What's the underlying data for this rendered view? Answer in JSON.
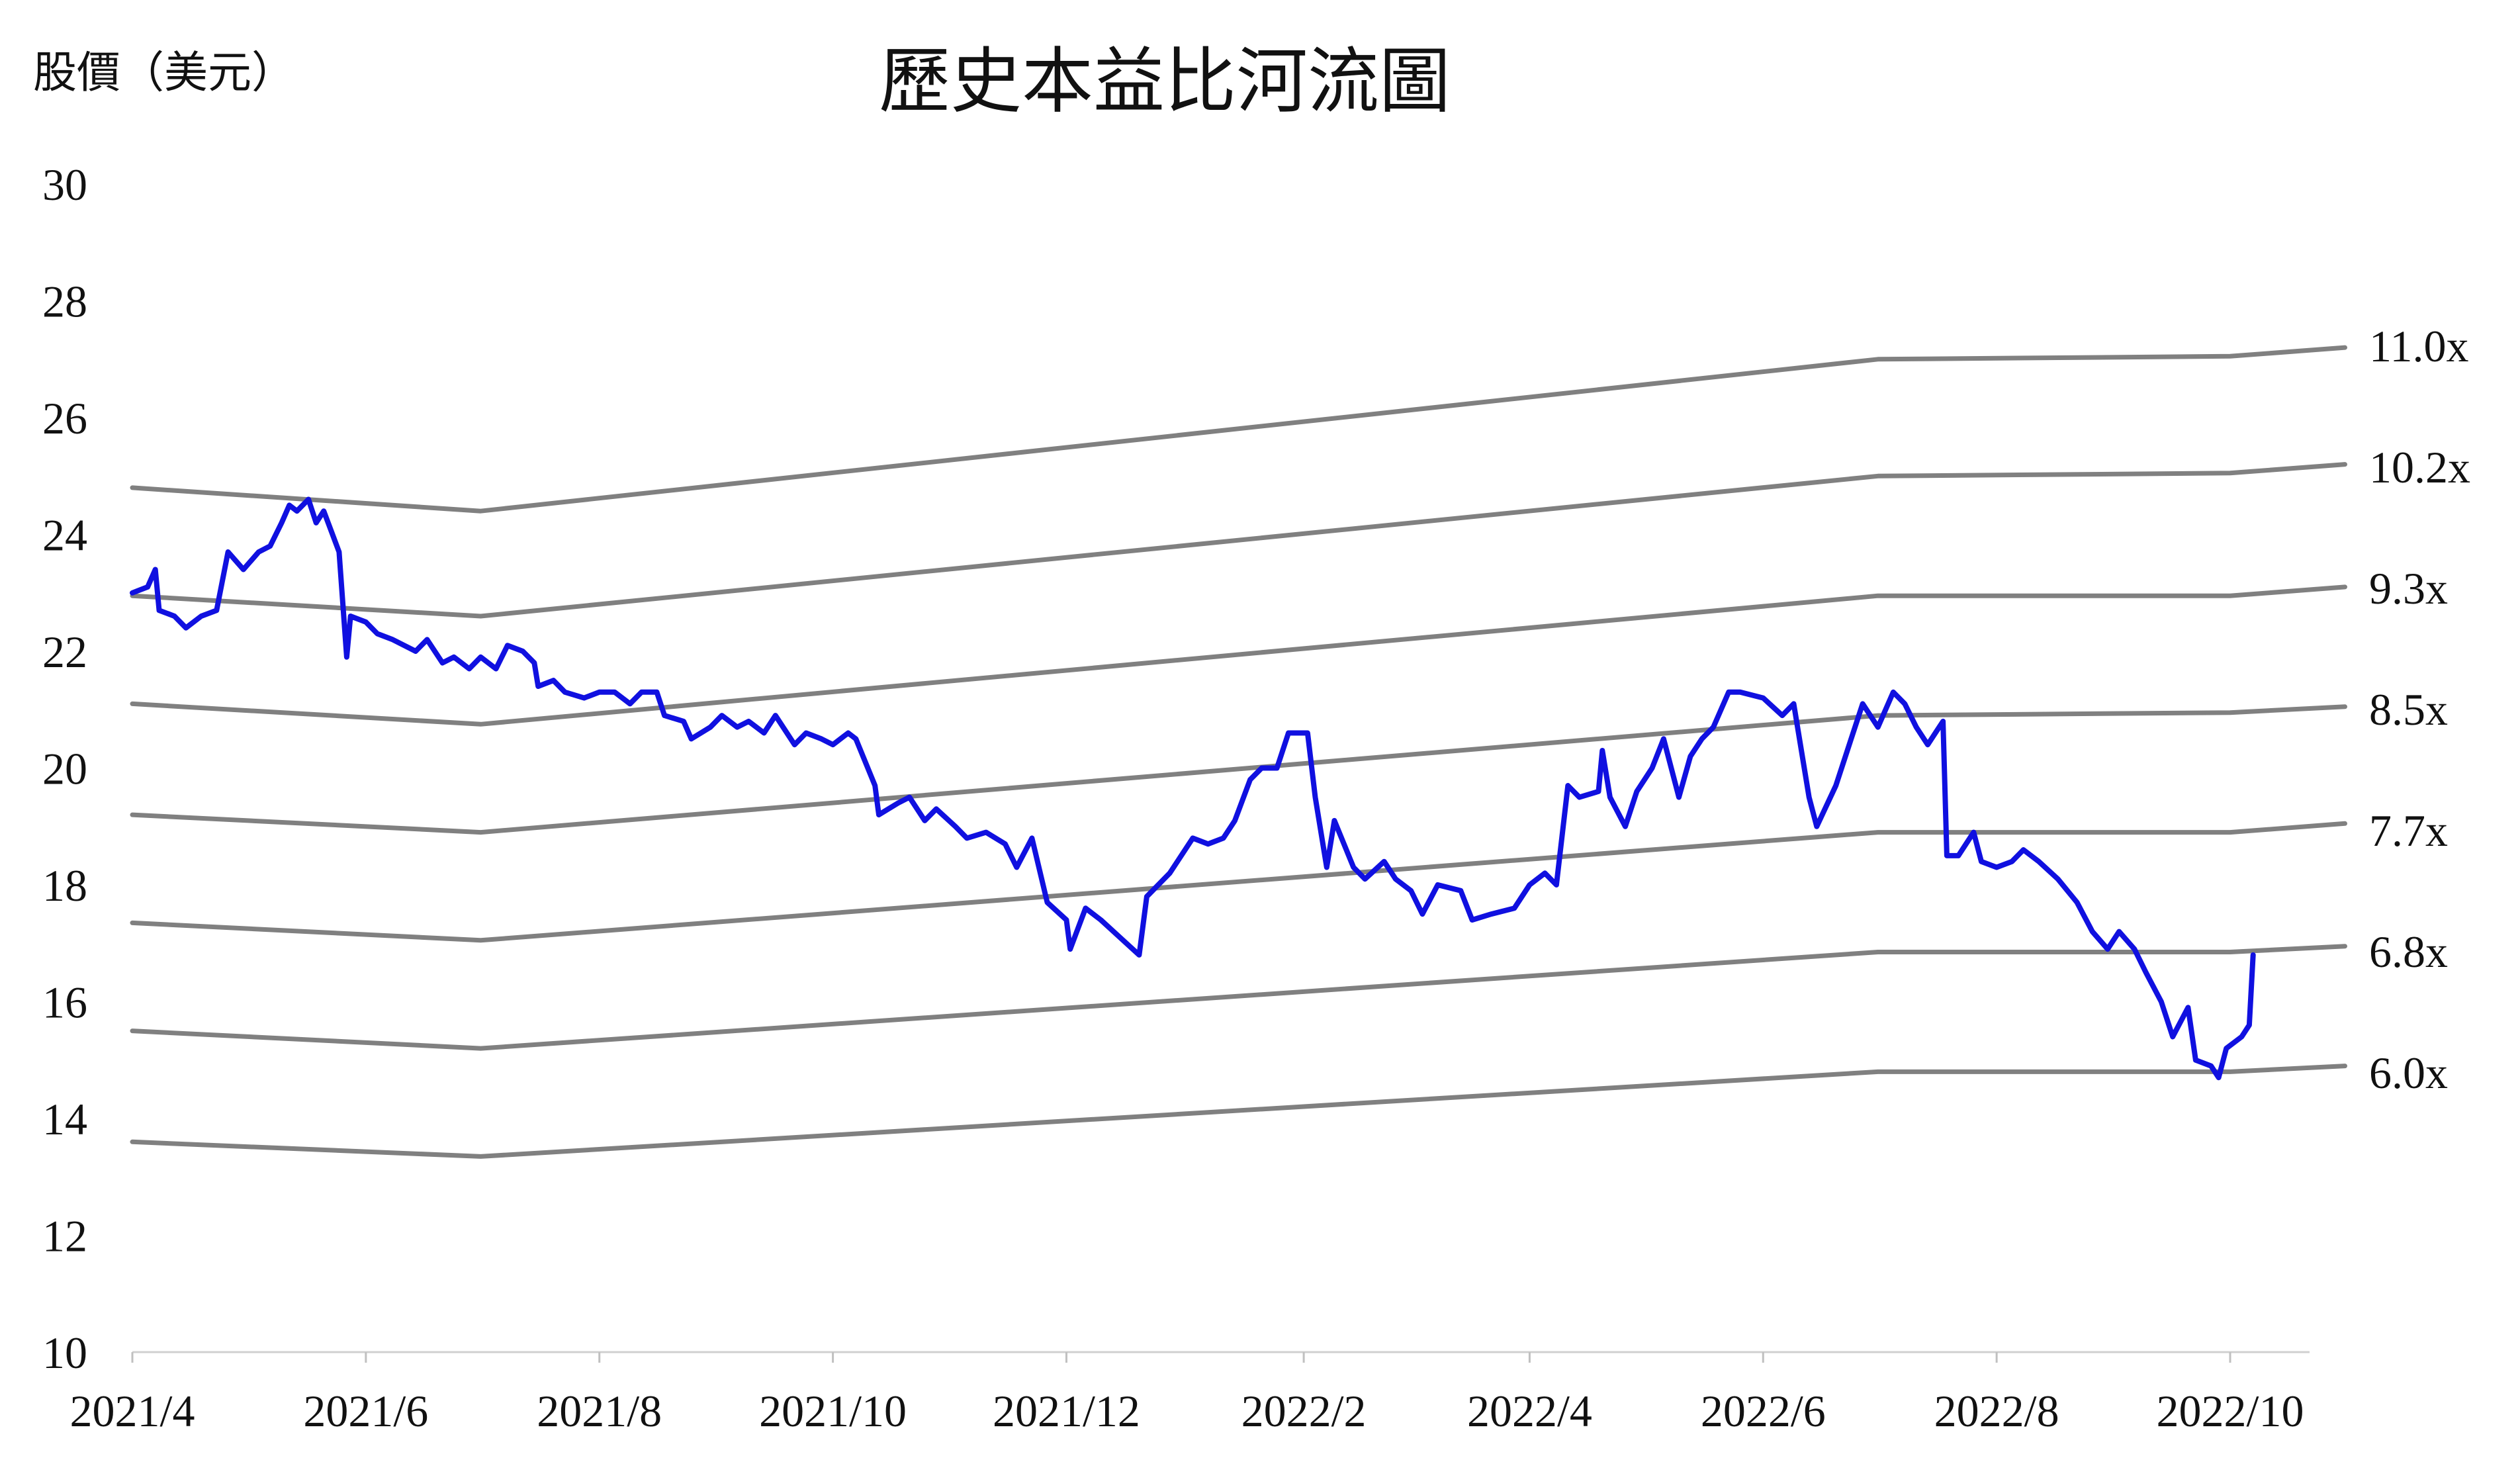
{
  "chart_data": {
    "type": "line",
    "title": "歷史本益比河流圖",
    "ylabel": "股價（美元）",
    "xlabel": "",
    "ylim": [
      10,
      30
    ],
    "yticks": [
      10,
      12,
      14,
      16,
      18,
      20,
      22,
      24,
      26,
      28,
      30
    ],
    "xlim": [
      "2021-04-01",
      "2022-10-31"
    ],
    "xticks": [
      {
        "date": "2021-04-01",
        "label": "2021/4"
      },
      {
        "date": "2021-06-01",
        "label": "2021/6"
      },
      {
        "date": "2021-08-01",
        "label": "2021/8"
      },
      {
        "date": "2021-10-01",
        "label": "2021/10"
      },
      {
        "date": "2021-12-01",
        "label": "2021/12"
      },
      {
        "date": "2022-02-01",
        "label": "2022/2"
      },
      {
        "date": "2022-04-01",
        "label": "2022/4"
      },
      {
        "date": "2022-06-01",
        "label": "2022/6"
      },
      {
        "date": "2022-08-01",
        "label": "2022/8"
      },
      {
        "date": "2022-10-01",
        "label": "2022/10"
      }
    ],
    "grid": false,
    "band_color": "#808080",
    "price_color": "#1010e0",
    "bands": [
      {
        "name": "11.0x",
        "points": [
          [
            "2021-04-01",
            24.8
          ],
          [
            "2021-07-01",
            24.4
          ],
          [
            "2022-07-01",
            27.0
          ],
          [
            "2022-10-01",
            27.05
          ],
          [
            "2022-10-31",
            27.2
          ]
        ]
      },
      {
        "name": "10.2x",
        "points": [
          [
            "2021-04-01",
            22.95
          ],
          [
            "2021-07-01",
            22.6
          ],
          [
            "2022-07-01",
            25.0
          ],
          [
            "2022-10-01",
            25.05
          ],
          [
            "2022-10-31",
            25.2
          ]
        ]
      },
      {
        "name": "9.3x",
        "points": [
          [
            "2021-04-01",
            21.1
          ],
          [
            "2021-07-01",
            20.75
          ],
          [
            "2022-07-01",
            22.95
          ],
          [
            "2022-10-01",
            22.95
          ],
          [
            "2022-10-31",
            23.1
          ]
        ]
      },
      {
        "name": "8.5x",
        "points": [
          [
            "2021-04-01",
            19.2
          ],
          [
            "2021-07-01",
            18.9
          ],
          [
            "2022-07-01",
            20.9
          ],
          [
            "2022-10-01",
            20.95
          ],
          [
            "2022-10-31",
            21.05
          ]
        ]
      },
      {
        "name": "7.7x",
        "points": [
          [
            "2021-04-01",
            17.35
          ],
          [
            "2021-07-01",
            17.05
          ],
          [
            "2022-07-01",
            18.9
          ],
          [
            "2022-10-01",
            18.9
          ],
          [
            "2022-10-31",
            19.05
          ]
        ]
      },
      {
        "name": "6.8x",
        "points": [
          [
            "2021-04-01",
            15.5
          ],
          [
            "2021-07-01",
            15.2
          ],
          [
            "2022-07-01",
            16.85
          ],
          [
            "2022-10-01",
            16.85
          ],
          [
            "2022-10-31",
            16.95
          ]
        ]
      },
      {
        "name": "6.0x",
        "points": [
          [
            "2021-04-01",
            13.6
          ],
          [
            "2021-07-01",
            13.35
          ],
          [
            "2022-07-01",
            14.8
          ],
          [
            "2022-10-01",
            14.8
          ],
          [
            "2022-10-31",
            14.9
          ]
        ]
      }
    ],
    "price": [
      [
        "2021-04-01",
        23.0
      ],
      [
        "2021-04-05",
        23.1
      ],
      [
        "2021-04-07",
        23.4
      ],
      [
        "2021-04-08",
        22.7
      ],
      [
        "2021-04-12",
        22.6
      ],
      [
        "2021-04-15",
        22.4
      ],
      [
        "2021-04-19",
        22.6
      ],
      [
        "2021-04-23",
        22.7
      ],
      [
        "2021-04-26",
        23.7
      ],
      [
        "2021-04-30",
        23.4
      ],
      [
        "2021-05-04",
        23.7
      ],
      [
        "2021-05-07",
        23.8
      ],
      [
        "2021-05-10",
        24.2
      ],
      [
        "2021-05-12",
        24.5
      ],
      [
        "2021-05-14",
        24.4
      ],
      [
        "2021-05-17",
        24.6
      ],
      [
        "2021-05-19",
        24.2
      ],
      [
        "2021-05-21",
        24.4
      ],
      [
        "2021-05-25",
        23.7
      ],
      [
        "2021-05-27",
        21.9
      ],
      [
        "2021-05-28",
        22.6
      ],
      [
        "2021-06-01",
        22.5
      ],
      [
        "2021-06-04",
        22.3
      ],
      [
        "2021-06-08",
        22.2
      ],
      [
        "2021-06-11",
        22.1
      ],
      [
        "2021-06-14",
        22.0
      ],
      [
        "2021-06-17",
        22.2
      ],
      [
        "2021-06-21",
        21.8
      ],
      [
        "2021-06-24",
        21.9
      ],
      [
        "2021-06-28",
        21.7
      ],
      [
        "2021-07-01",
        21.9
      ],
      [
        "2021-07-05",
        21.7
      ],
      [
        "2021-07-08",
        22.1
      ],
      [
        "2021-07-12",
        22.0
      ],
      [
        "2021-07-15",
        21.8
      ],
      [
        "2021-07-16",
        21.4
      ],
      [
        "2021-07-20",
        21.5
      ],
      [
        "2021-07-23",
        21.3
      ],
      [
        "2021-07-28",
        21.2
      ],
      [
        "2021-08-01",
        21.3
      ],
      [
        "2021-08-05",
        21.3
      ],
      [
        "2021-08-09",
        21.1
      ],
      [
        "2021-08-12",
        21.3
      ],
      [
        "2021-08-16",
        21.3
      ],
      [
        "2021-08-18",
        20.9
      ],
      [
        "2021-08-23",
        20.8
      ],
      [
        "2021-08-25",
        20.5
      ],
      [
        "2021-08-30",
        20.7
      ],
      [
        "2021-09-02",
        20.9
      ],
      [
        "2021-09-06",
        20.7
      ],
      [
        "2021-09-09",
        20.8
      ],
      [
        "2021-09-13",
        20.6
      ],
      [
        "2021-09-16",
        20.9
      ],
      [
        "2021-09-21",
        20.4
      ],
      [
        "2021-09-24",
        20.6
      ],
      [
        "2021-09-28",
        20.5
      ],
      [
        "2021-10-01",
        20.4
      ],
      [
        "2021-10-05",
        20.6
      ],
      [
        "2021-10-07",
        20.5
      ],
      [
        "2021-10-12",
        19.7
      ],
      [
        "2021-10-13",
        19.2
      ],
      [
        "2021-10-18",
        19.4
      ],
      [
        "2021-10-21",
        19.5
      ],
      [
        "2021-10-25",
        19.1
      ],
      [
        "2021-10-28",
        19.3
      ],
      [
        "2021-11-02",
        19.0
      ],
      [
        "2021-11-05",
        18.8
      ],
      [
        "2021-11-10",
        18.9
      ],
      [
        "2021-11-15",
        18.7
      ],
      [
        "2021-11-18",
        18.3
      ],
      [
        "2021-11-22",
        18.8
      ],
      [
        "2021-11-26",
        17.7
      ],
      [
        "2021-12-01",
        17.4
      ],
      [
        "2021-12-02",
        16.9
      ],
      [
        "2021-12-06",
        17.6
      ],
      [
        "2021-12-10",
        17.4
      ],
      [
        "2021-12-15",
        17.1
      ],
      [
        "2021-12-20",
        16.8
      ],
      [
        "2021-12-22",
        17.8
      ],
      [
        "2021-12-28",
        18.2
      ],
      [
        "2022-01-03",
        18.8
      ],
      [
        "2022-01-07",
        18.7
      ],
      [
        "2022-01-11",
        18.8
      ],
      [
        "2022-01-14",
        19.1
      ],
      [
        "2022-01-18",
        19.8
      ],
      [
        "2022-01-21",
        20.0
      ],
      [
        "2022-01-25",
        20.0
      ],
      [
        "2022-01-28",
        20.6
      ],
      [
        "2022-02-02",
        20.6
      ],
      [
        "2022-02-04",
        19.5
      ],
      [
        "2022-02-07",
        18.3
      ],
      [
        "2022-02-09",
        19.1
      ],
      [
        "2022-02-14",
        18.3
      ],
      [
        "2022-02-17",
        18.1
      ],
      [
        "2022-02-22",
        18.4
      ],
      [
        "2022-02-25",
        18.1
      ],
      [
        "2022-03-01",
        17.9
      ],
      [
        "2022-03-04",
        17.5
      ],
      [
        "2022-03-08",
        18.0
      ],
      [
        "2022-03-14",
        17.9
      ],
      [
        "2022-03-17",
        17.4
      ],
      [
        "2022-03-22",
        17.5
      ],
      [
        "2022-03-28",
        17.6
      ],
      [
        "2022-04-01",
        18.0
      ],
      [
        "2022-04-05",
        18.2
      ],
      [
        "2022-04-08",
        18.0
      ],
      [
        "2022-04-11",
        19.7
      ],
      [
        "2022-04-14",
        19.5
      ],
      [
        "2022-04-19",
        19.6
      ],
      [
        "2022-04-20",
        20.3
      ],
      [
        "2022-04-22",
        19.5
      ],
      [
        "2022-04-26",
        19.0
      ],
      [
        "2022-04-29",
        19.6
      ],
      [
        "2022-05-03",
        20.0
      ],
      [
        "2022-05-06",
        20.5
      ],
      [
        "2022-05-10",
        19.5
      ],
      [
        "2022-05-13",
        20.2
      ],
      [
        "2022-05-16",
        20.5
      ],
      [
        "2022-05-19",
        20.7
      ],
      [
        "2022-05-23",
        21.3
      ],
      [
        "2022-05-26",
        21.3
      ],
      [
        "2022-06-01",
        21.2
      ],
      [
        "2022-06-06",
        20.9
      ],
      [
        "2022-06-09",
        21.1
      ],
      [
        "2022-06-13",
        19.5
      ],
      [
        "2022-06-15",
        19.0
      ],
      [
        "2022-06-20",
        19.7
      ],
      [
        "2022-06-24",
        20.5
      ],
      [
        "2022-06-27",
        21.1
      ],
      [
        "2022-07-01",
        20.7
      ],
      [
        "2022-07-05",
        21.3
      ],
      [
        "2022-07-08",
        21.1
      ],
      [
        "2022-07-11",
        20.7
      ],
      [
        "2022-07-14",
        20.4
      ],
      [
        "2022-07-18",
        20.8
      ],
      [
        "2022-07-19",
        18.5
      ],
      [
        "2022-07-22",
        18.5
      ],
      [
        "2022-07-26",
        18.9
      ],
      [
        "2022-07-28",
        18.4
      ],
      [
        "2022-08-01",
        18.3
      ],
      [
        "2022-08-05",
        18.4
      ],
      [
        "2022-08-08",
        18.6
      ],
      [
        "2022-08-12",
        18.4
      ],
      [
        "2022-08-17",
        18.1
      ],
      [
        "2022-08-22",
        17.7
      ],
      [
        "2022-08-26",
        17.2
      ],
      [
        "2022-08-30",
        16.9
      ],
      [
        "2022-09-02",
        17.2
      ],
      [
        "2022-09-06",
        16.9
      ],
      [
        "2022-09-09",
        16.5
      ],
      [
        "2022-09-13",
        16.0
      ],
      [
        "2022-09-16",
        15.4
      ],
      [
        "2022-09-20",
        15.9
      ],
      [
        "2022-09-22",
        15.0
      ],
      [
        "2022-09-26",
        14.9
      ],
      [
        "2022-09-28",
        14.7
      ],
      [
        "2022-09-30",
        15.2
      ],
      [
        "2022-10-04",
        15.4
      ],
      [
        "2022-10-06",
        15.6
      ],
      [
        "2022-10-07",
        16.8
      ]
    ]
  }
}
